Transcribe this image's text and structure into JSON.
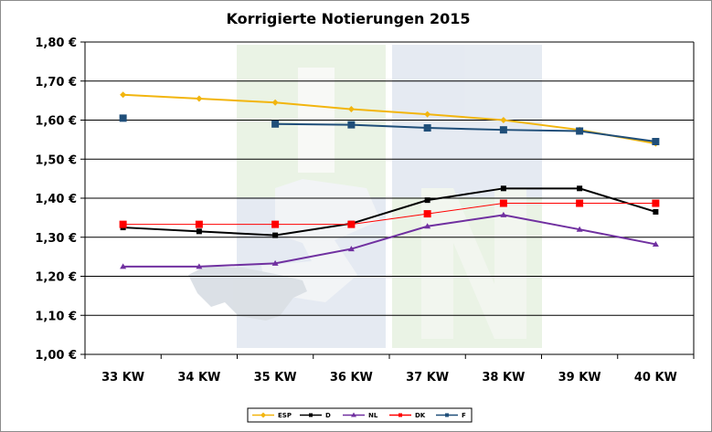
{
  "chart_data": {
    "type": "line",
    "title": "Korrigierte Notierungen 2015",
    "categories": [
      "33 KW",
      "34 KW",
      "35 KW",
      "36 KW",
      "37 KW",
      "38 KW",
      "39 KW",
      "40 KW"
    ],
    "ylim": [
      1.0,
      1.8
    ],
    "yticks": [
      "1,00 €",
      "1,10 €",
      "1,20 €",
      "1,30 €",
      "1,40 €",
      "1,50 €",
      "1,60 €",
      "1,70 €",
      "1,80 €"
    ],
    "grid": true,
    "legend_position": "bottom",
    "series": [
      {
        "name": "ESP",
        "color": "#f2b50e",
        "marker": "diamond",
        "values": [
          1.665,
          1.655,
          1.645,
          1.628,
          1.615,
          1.6,
          1.575,
          1.54
        ]
      },
      {
        "name": "D",
        "color": "#000000",
        "marker": "square",
        "values": [
          1.325,
          1.315,
          1.305,
          1.335,
          1.395,
          1.425,
          1.425,
          1.365
        ]
      },
      {
        "name": "NL",
        "color": "#7030a0",
        "marker": "triangle",
        "values": [
          1.225,
          1.225,
          1.233,
          1.27,
          1.328,
          1.357,
          1.32,
          1.282
        ]
      },
      {
        "name": "DK",
        "color": "#ff0000",
        "marker": "square",
        "values": [
          1.333,
          1.333,
          1.333,
          1.333,
          1.36,
          1.387,
          1.387,
          1.387
        ]
      },
      {
        "name": "F",
        "color": "#1f4e79",
        "marker": "square",
        "values": [
          1.605,
          null,
          1.59,
          1.588,
          1.58,
          1.575,
          1.572,
          1.545
        ]
      }
    ]
  }
}
